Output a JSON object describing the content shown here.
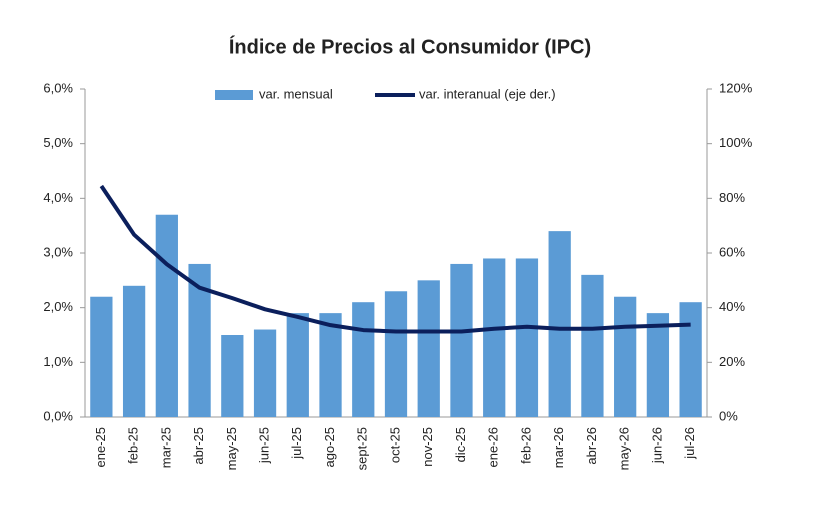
{
  "chart_data": {
    "type": "bar_line",
    "title": "Índice de Precios al Consumidor (IPC)",
    "categories": [
      "ene-25",
      "feb-25",
      "mar-25",
      "abr-25",
      "may-25",
      "jun-25",
      "jul-25",
      "ago-25",
      "sept-25",
      "oct-25",
      "nov-25",
      "dic-25",
      "ene-26",
      "feb-26",
      "mar-26",
      "abr-26",
      "may-26",
      "jun-26",
      "jul-26"
    ],
    "series": [
      {
        "name": "var. mensual",
        "type": "bar",
        "color": "#5b9bd5",
        "values": [
          2.2,
          2.4,
          3.7,
          2.8,
          1.5,
          1.6,
          1.9,
          1.9,
          2.1,
          2.3,
          2.5,
          2.8,
          2.9,
          2.9,
          3.4,
          2.6,
          2.2,
          1.9,
          2.1
        ]
      },
      {
        "name": "var. interanual (eje der.)",
        "type": "line",
        "axis": "y2",
        "color": "#0b1f5c",
        "values": [
          84.5,
          66.7,
          55.9,
          47.3,
          43.5,
          39.4,
          36.6,
          33.6,
          31.8,
          31.3,
          31.3,
          31.3,
          32.3,
          33.0,
          32.3,
          32.3,
          33.0,
          33.4,
          33.8
        ]
      }
    ],
    "ylim": [
      0,
      6
    ],
    "yticks": [
      {
        "value": 0,
        "label": "0,0%"
      },
      {
        "value": 1,
        "label": "1,0%"
      },
      {
        "value": 2,
        "label": "2,0%"
      },
      {
        "value": 3,
        "label": "3,0%"
      },
      {
        "value": 4,
        "label": "4,0%"
      },
      {
        "value": 5,
        "label": "5,0%"
      },
      {
        "value": 6,
        "label": "6,0%"
      }
    ],
    "y2lim": [
      0,
      120
    ],
    "y2ticks": [
      {
        "value": 0,
        "label": "0%"
      },
      {
        "value": 20,
        "label": "20%"
      },
      {
        "value": 40,
        "label": "40%"
      },
      {
        "value": 60,
        "label": "60%"
      },
      {
        "value": 80,
        "label": "80%"
      },
      {
        "value": 100,
        "label": "100%"
      },
      {
        "value": 120,
        "label": "120%"
      }
    ],
    "legend": "top"
  }
}
